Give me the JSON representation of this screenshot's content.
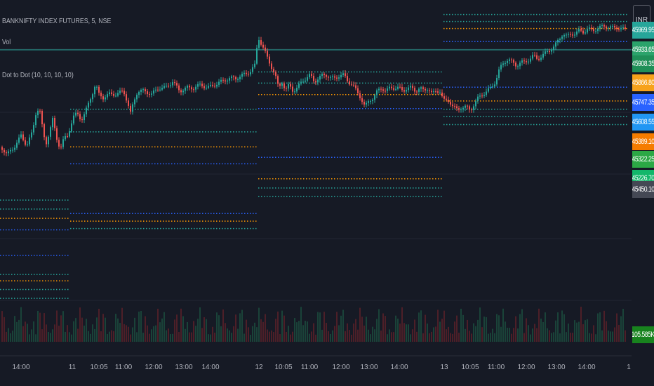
{
  "header": {
    "symbol": "BANKNIFTY INDEX FUTURES, 5, NSE",
    "volume_label": "Vol",
    "indicator": "Dot to Dot (10, 10, 10, 10)",
    "currency": "INR"
  },
  "colors": {
    "background": "#161a25",
    "grid": "#222633",
    "up": "#26a69a",
    "down": "#ef5350",
    "level_teal": "#26a69a",
    "level_orange": "#ff9800",
    "level_blue": "#2962ff"
  },
  "price_tags": [
    {
      "text": "45969.95",
      "color": "#26a69a",
      "price": 45960
    },
    {
      "text": "45933.65",
      "color": "#2ba36b",
      "price": 45900
    },
    {
      "text": "45908.35",
      "color": "#1f8f58",
      "price": 45855
    },
    {
      "text": "45866.80",
      "color": "#f7a21b",
      "price": 45795
    },
    {
      "text": "45747.35",
      "color": "#2962ff",
      "price": 45735
    },
    {
      "text": "45608.55",
      "color": "#2196f3",
      "price": 45672
    },
    {
      "text": "45389.10",
      "color": "#f57c00",
      "price": 45612
    },
    {
      "text": "45322.25",
      "color": "#2ca845",
      "price": 45556
    },
    {
      "text": "45226.70",
      "color": "#12b76a",
      "price": 45497
    },
    {
      "text": "105.585K",
      "color": "#18831e",
      "price": 45005
    },
    {
      "text": "45450.10",
      "color": "#444854",
      "price": 45461
    }
  ],
  "chart_data": {
    "type": "candlestick",
    "ylim": [
      44940,
      46040
    ],
    "x_ticks": [
      "14:00",
      "11",
      "10:05",
      "11:00",
      "12:00",
      "13:00",
      "14:00",
      "12",
      "10:05",
      "11:00",
      "12:00",
      "13:00",
      "14:00",
      "13",
      "10:05",
      "11:00",
      "12:00",
      "13:00",
      "14:00",
      "1"
    ],
    "price_path": [
      [
        0,
        45600
      ],
      [
        10,
        45570
      ],
      [
        22,
        45600
      ],
      [
        30,
        45630
      ],
      [
        38,
        45600
      ],
      [
        46,
        45640
      ],
      [
        51,
        45700
      ],
      [
        56,
        45720
      ],
      [
        60,
        45660
      ],
      [
        65,
        45600
      ],
      [
        70,
        45640
      ],
      [
        75,
        45680
      ],
      [
        81,
        45620
      ],
      [
        86,
        45590
      ],
      [
        91,
        45620
      ],
      [
        97,
        45630
      ],
      [
        100,
        45660
      ],
      [
        105,
        45690
      ],
      [
        110,
        45700
      ],
      [
        116,
        45680
      ],
      [
        121,
        45700
      ],
      [
        126,
        45730
      ],
      [
        131,
        45760
      ],
      [
        136,
        45790
      ],
      [
        141,
        45760
      ],
      [
        147,
        45750
      ],
      [
        156,
        45760
      ],
      [
        166,
        45760
      ],
      [
        176,
        45770
      ],
      [
        181,
        45740
      ],
      [
        186,
        45700
      ],
      [
        191,
        45740
      ],
      [
        196,
        45770
      ],
      [
        206,
        45770
      ],
      [
        216,
        45760
      ],
      [
        226,
        45780
      ],
      [
        236,
        45780
      ],
      [
        246,
        45800
      ],
      [
        256,
        45770
      ],
      [
        266,
        45780
      ],
      [
        276,
        45780
      ],
      [
        286,
        45790
      ],
      [
        296,
        45780
      ],
      [
        306,
        45790
      ],
      [
        316,
        45800
      ],
      [
        326,
        45810
      ],
      [
        336,
        45810
      ],
      [
        346,
        45820
      ],
      [
        356,
        45830
      ],
      [
        363,
        45850
      ],
      [
        368,
        45940
      ],
      [
        374,
        45910
      ],
      [
        380,
        45880
      ],
      [
        386,
        45850
      ],
      [
        392,
        45820
      ],
      [
        397,
        45780
      ],
      [
        402,
        45800
      ],
      [
        407,
        45770
      ],
      [
        412,
        45790
      ],
      [
        418,
        45770
      ],
      [
        424,
        45780
      ],
      [
        430,
        45800
      ],
      [
        436,
        45810
      ],
      [
        442,
        45820
      ],
      [
        448,
        45800
      ],
      [
        454,
        45810
      ],
      [
        460,
        45820
      ],
      [
        466,
        45820
      ],
      [
        472,
        45810
      ],
      [
        478,
        45810
      ],
      [
        484,
        45820
      ],
      [
        490,
        45820
      ],
      [
        496,
        45800
      ],
      [
        502,
        45790
      ],
      [
        508,
        45770
      ],
      [
        514,
        45750
      ],
      [
        520,
        45720
      ],
      [
        526,
        45740
      ],
      [
        532,
        45750
      ],
      [
        538,
        45770
      ],
      [
        544,
        45780
      ],
      [
        550,
        45770
      ],
      [
        556,
        45780
      ],
      [
        562,
        45780
      ],
      [
        568,
        45780
      ],
      [
        574,
        45770
      ],
      [
        580,
        45780
      ],
      [
        586,
        45780
      ],
      [
        592,
        45770
      ],
      [
        598,
        45780
      ],
      [
        604,
        45770
      ],
      [
        610,
        45780
      ],
      [
        616,
        45760
      ],
      [
        622,
        45770
      ],
      [
        627,
        45770
      ],
      [
        632,
        45740
      ],
      [
        640,
        45740
      ],
      [
        646,
        45720
      ],
      [
        652,
        45710
      ],
      [
        658,
        45720
      ],
      [
        664,
        45720
      ],
      [
        670,
        45710
      ],
      [
        676,
        45730
      ],
      [
        682,
        45750
      ],
      [
        688,
        45760
      ],
      [
        694,
        45770
      ],
      [
        700,
        45780
      ],
      [
        706,
        45800
      ],
      [
        712,
        45840
      ],
      [
        718,
        45860
      ],
      [
        724,
        45870
      ],
      [
        730,
        45860
      ],
      [
        736,
        45850
      ],
      [
        742,
        45860
      ],
      [
        748,
        45860
      ],
      [
        754,
        45870
      ],
      [
        760,
        45880
      ],
      [
        766,
        45870
      ],
      [
        772,
        45880
      ],
      [
        778,
        45890
      ],
      [
        784,
        45900
      ],
      [
        790,
        45910
      ],
      [
        796,
        45930
      ],
      [
        802,
        45950
      ],
      [
        808,
        45940
      ],
      [
        814,
        45950
      ],
      [
        820,
        45950
      ],
      [
        826,
        45960
      ],
      [
        832,
        45955
      ],
      [
        838,
        45965
      ],
      [
        844,
        45960
      ],
      [
        850,
        45965
      ],
      [
        856,
        45970
      ],
      [
        862,
        45975
      ],
      [
        868,
        45970
      ],
      [
        874,
        45968
      ],
      [
        880,
        45970
      ],
      [
        886,
        45965
      ],
      [
        892,
        45962
      ]
    ],
    "levels": [
      {
        "x0": 0,
        "x1": 100,
        "price": 45428,
        "color": "teal"
      },
      {
        "x0": 0,
        "x1": 100,
        "price": 45400,
        "color": "teal"
      },
      {
        "x0": 0,
        "x1": 100,
        "price": 45371,
        "color": "orange"
      },
      {
        "x0": 0,
        "x1": 100,
        "price": 45335,
        "color": "blue"
      },
      {
        "x0": 0,
        "x1": 100,
        "price": 45255,
        "color": "blue"
      },
      {
        "x0": 0,
        "x1": 100,
        "price": 45195,
        "color": "teal"
      },
      {
        "x0": 0,
        "x1": 100,
        "price": 45175,
        "color": "orange"
      },
      {
        "x0": 0,
        "x1": 100,
        "price": 45148,
        "color": "teal"
      },
      {
        "x0": 0,
        "x1": 100,
        "price": 45120,
        "color": "teal"
      },
      {
        "x0": 100,
        "x1": 368,
        "price": 45713,
        "color": "teal"
      },
      {
        "x0": 100,
        "x1": 368,
        "price": 45642,
        "color": "teal"
      },
      {
        "x0": 100,
        "x1": 368,
        "price": 45595,
        "color": "orange"
      },
      {
        "x0": 100,
        "x1": 368,
        "price": 45542,
        "color": "blue"
      },
      {
        "x0": 100,
        "x1": 368,
        "price": 45386,
        "color": "blue"
      },
      {
        "x0": 100,
        "x1": 368,
        "price": 45362,
        "color": "orange"
      },
      {
        "x0": 100,
        "x1": 368,
        "price": 45339,
        "color": "teal"
      },
      {
        "x0": 368,
        "x1": 632,
        "price": 45830,
        "color": "teal"
      },
      {
        "x0": 368,
        "x1": 632,
        "price": 45795,
        "color": "teal"
      },
      {
        "x0": 368,
        "x1": 632,
        "price": 45759,
        "color": "orange"
      },
      {
        "x0": 368,
        "x1": 632,
        "price": 45715,
        "color": "blue"
      },
      {
        "x0": 368,
        "x1": 632,
        "price": 45562,
        "color": "blue"
      },
      {
        "x0": 368,
        "x1": 632,
        "price": 45495,
        "color": "orange"
      },
      {
        "x0": 368,
        "x1": 632,
        "price": 45466,
        "color": "teal"
      },
      {
        "x0": 368,
        "x1": 632,
        "price": 45440,
        "color": "teal"
      },
      {
        "x0": 632,
        "x1": 895,
        "price": 46010,
        "color": "teal"
      },
      {
        "x0": 632,
        "x1": 895,
        "price": 45988,
        "color": "teal"
      },
      {
        "x0": 632,
        "x1": 895,
        "price": 45966,
        "color": "orange"
      },
      {
        "x0": 632,
        "x1": 895,
        "price": 45925,
        "color": "blue"
      },
      {
        "x0": 632,
        "x1": 895,
        "price": 45782,
        "color": "blue"
      },
      {
        "x0": 632,
        "x1": 895,
        "price": 45739,
        "color": "orange"
      },
      {
        "x0": 632,
        "x1": 895,
        "price": 45713,
        "color": "teal"
      },
      {
        "x0": 632,
        "x1": 895,
        "price": 45690,
        "color": "teal"
      },
      {
        "x0": 632,
        "x1": 895,
        "price": 45665,
        "color": "teal"
      }
    ]
  }
}
